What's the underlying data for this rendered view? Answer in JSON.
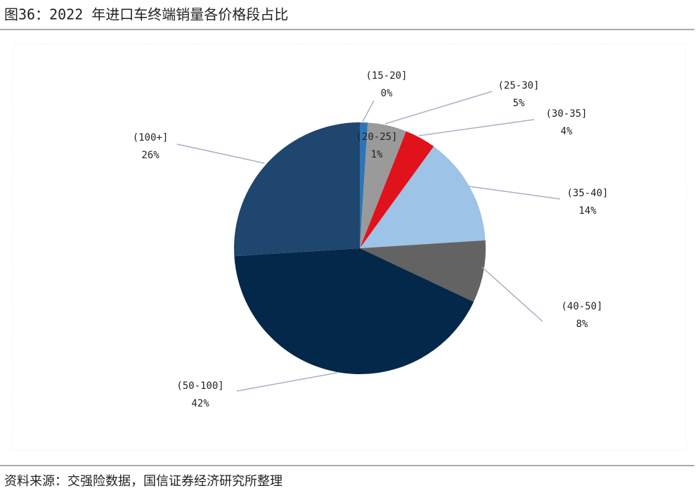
{
  "chart_data": {
    "type": "pie",
    "title": "图36：2022 年进口车终端销量各价格段占比",
    "source": "资料来源：交强险数据，国信证券经济研究所整理",
    "categories": [
      "(15-20]",
      "(20-25]",
      "(25-30]",
      "(30-35]",
      "(35-40]",
      "(40-50]",
      "(50-100]",
      "(100+]"
    ],
    "values": [
      0,
      1,
      5,
      4,
      14,
      8,
      42,
      26
    ],
    "value_labels": [
      "0%",
      "1%",
      "5%",
      "4%",
      "14%",
      "8%",
      "42%",
      "26%"
    ],
    "colors": [
      "#2e75b6",
      "#2e75b6",
      "#9a9a9a",
      "#e0121b",
      "#9dc3e6",
      "#636363",
      "#032849",
      "#1f466e"
    ]
  }
}
